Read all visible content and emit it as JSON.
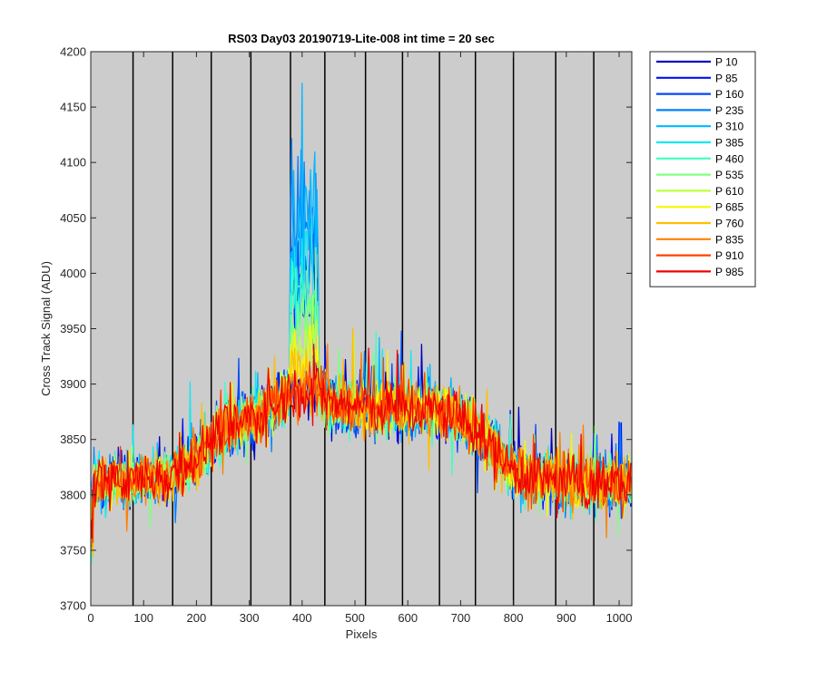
{
  "chart_data": {
    "type": "line",
    "title": "RS03 Day03 20190719-Lite-008 int time = 20 sec",
    "xlabel": "Pixels",
    "ylabel": "Cross Track Signal (ADU)",
    "xlim": [
      0,
      1024
    ],
    "ylim": [
      3700,
      4200
    ],
    "xticks": [
      0,
      100,
      200,
      300,
      400,
      500,
      600,
      700,
      800,
      900,
      1000
    ],
    "yticks": [
      3700,
      3750,
      3800,
      3850,
      3900,
      3950,
      4000,
      4050,
      4100,
      4150,
      4200
    ],
    "background": "#cccccc",
    "vertical_lines_x": [
      80,
      155,
      228,
      303,
      378,
      443,
      520,
      590,
      660,
      728,
      800,
      880,
      952
    ],
    "legend_position": "outside-top-right",
    "grid": false,
    "profile": {
      "description_values": "approximate mean cross-track signal envelope (ADU) vs pixel",
      "x": [
        0,
        50,
        100,
        150,
        200,
        250,
        300,
        350,
        380,
        430,
        450,
        500,
        550,
        600,
        650,
        700,
        750,
        800,
        850,
        900,
        950,
        1000,
        1024
      ],
      "mean": [
        3812,
        3813,
        3815,
        3818,
        3835,
        3858,
        3868,
        3880,
        3895,
        3895,
        3885,
        3880,
        3878,
        3878,
        3876,
        3870,
        3848,
        3822,
        3815,
        3812,
        3810,
        3812,
        3813
      ],
      "noise_amplitude": 45
    },
    "bright_feature": {
      "x_range": [
        378,
        430
      ],
      "peak_series_range": [
        "P 235",
        "P 460"
      ],
      "peak_max": 4182
    },
    "series": [
      {
        "name": "P 10",
        "color": "#0000bf"
      },
      {
        "name": "P 85",
        "color": "#0010f0"
      },
      {
        "name": "P 160",
        "color": "#0048f8"
      },
      {
        "name": "P 235",
        "color": "#0080ff"
      },
      {
        "name": "P 310",
        "color": "#00b8ff"
      },
      {
        "name": "P 385",
        "color": "#10e8f0"
      },
      {
        "name": "P 460",
        "color": "#40ffc0"
      },
      {
        "name": "P 535",
        "color": "#80ff80"
      },
      {
        "name": "P 610",
        "color": "#c0ff40"
      },
      {
        "name": "P 685",
        "color": "#f8f800"
      },
      {
        "name": "P 760",
        "color": "#ffc000"
      },
      {
        "name": "P 835",
        "color": "#ff8000"
      },
      {
        "name": "P 910",
        "color": "#ff4000"
      },
      {
        "name": "P 985",
        "color": "#f00000"
      }
    ]
  }
}
